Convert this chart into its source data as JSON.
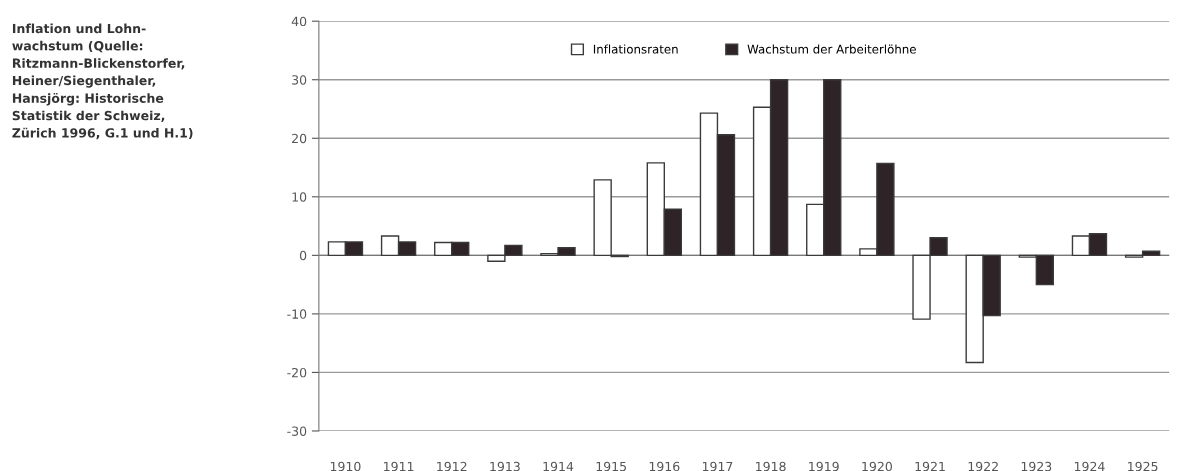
{
  "chart_data": {
    "type": "bar",
    "title": "Inflation und Lohn-\nwachstum (Quelle:\nRitzmann-Blickenstorfer,\nHeiner/Siegenthaler,\nHansjörg: Historische\nStatistik der Schweiz,\nZürich 1996, G.1 und H.1)",
    "categories": [
      "1910",
      "1911",
      "1912",
      "1913",
      "1914",
      "1915",
      "1916",
      "1917",
      "1918",
      "1919",
      "1920",
      "1921",
      "1922",
      "1923",
      "1924",
      "1925"
    ],
    "series": [
      {
        "name": "Inflationsraten",
        "color": "#ffffff",
        "values": [
          2.3,
          3.3,
          2.2,
          -1.0,
          0.3,
          12.9,
          15.8,
          24.3,
          25.3,
          8.7,
          1.1,
          -10.9,
          -18.3,
          -0.3,
          3.3,
          -0.3
        ]
      },
      {
        "name": "Wachstum der Arbeiterlöhne",
        "color": "#2e2326",
        "values": [
          2.3,
          2.3,
          2.2,
          1.7,
          1.3,
          -0.2,
          7.9,
          20.6,
          30,
          30,
          15.7,
          3.0,
          -10.3,
          -5.0,
          3.7,
          0.7
        ]
      }
    ],
    "ylim": [
      -30,
      40
    ],
    "yticks": [
      -30,
      -20,
      -10,
      0,
      10,
      20,
      30,
      40
    ],
    "grid": "y",
    "legend": "top"
  }
}
